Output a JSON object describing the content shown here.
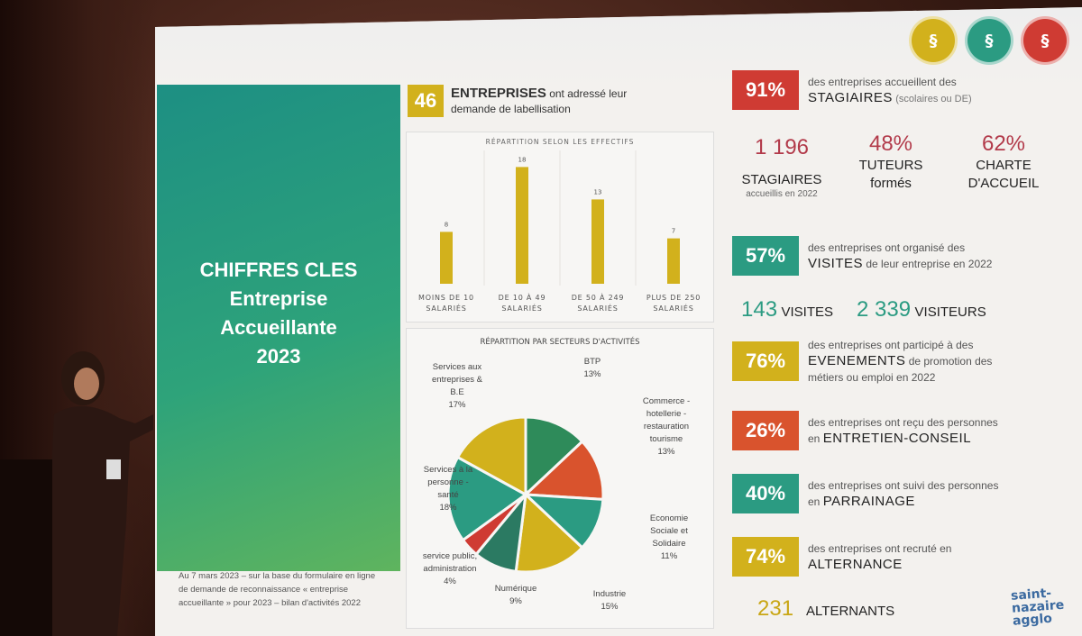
{
  "left_panel": {
    "title_line1": "CHIFFRES CLES",
    "title_line2": "Entreprise",
    "title_line3": "Accueillante",
    "title_line4": "2023"
  },
  "footnote": {
    "line1": "Au 7 mars 2023 – sur la base du formulaire en ligne",
    "line2": "de demande de reconnaissance « entreprise",
    "line3": "accueillante » pour 2023 – bilan d'activités 2022"
  },
  "header": {
    "count": "46",
    "line1_bold": "ENTREPRISES",
    "line1_rest": " ont adressé leur",
    "line2": "demande de labellisation"
  },
  "chart_data": [
    {
      "type": "bar",
      "title": "RÉPARTITION SELON LES EFFECTIFS",
      "categories": [
        "MOINS DE 10 SALARIÉS",
        "DE 10 À 49 SALARIÉS",
        "DE 50 À 249 SALARIÉS",
        "PLUS DE 250 SALARIÉS"
      ],
      "category_lines": [
        [
          "MOINS DE 10",
          "SALARIÉS"
        ],
        [
          "DE 10 À 49",
          "SALARIÉS"
        ],
        [
          "DE 50 À 249",
          "SALARIÉS"
        ],
        [
          "PLUS DE 250",
          "SALARIÉS"
        ]
      ],
      "values": [
        8,
        18,
        13,
        7
      ],
      "ylim": [
        0,
        20
      ],
      "color": "#d2b11c"
    },
    {
      "type": "pie",
      "title": "RÉPARTITION PAR SECTEURS D'ACTIVITÉS",
      "slices": [
        {
          "label": "BTP",
          "value": 13,
          "pct": "13%",
          "color": "#2e8b5a"
        },
        {
          "label": "Commerce - hotellerie - restauration tourisme",
          "value": 13,
          "pct": "13%",
          "color": "#d9532d"
        },
        {
          "label": "Economie Sociale et Solidaire",
          "value": 11,
          "pct": "11%",
          "color": "#2b9b82"
        },
        {
          "label": "Industrie",
          "value": 15,
          "pct": "15%",
          "color": "#d2b11c"
        },
        {
          "label": "Numérique",
          "value": 9,
          "pct": "9%",
          "color": "#2b7a62"
        },
        {
          "label": "service public, administration",
          "value": 4,
          "pct": "4%",
          "color": "#cf3b33"
        },
        {
          "label": "Services à la personne - santé",
          "value": 18,
          "pct": "18%",
          "color": "#2b9b82"
        },
        {
          "label": "Services aux entreprises & B.E",
          "value": 17,
          "pct": "17%",
          "color": "#d2b11c"
        }
      ]
    }
  ],
  "pie_labels": {
    "btp_1": "BTP",
    "btp_2": "13%",
    "com_1": "Commerce -",
    "com_2": "hotellerie -",
    "com_3": "restauration",
    "com_4": "tourisme",
    "com_5": "13%",
    "ess_1": "Economie",
    "ess_2": "Sociale et",
    "ess_3": "Solidaire",
    "ess_4": "11%",
    "ind_1": "Industrie",
    "ind_2": "15%",
    "num_1": "Numérique",
    "num_2": "9%",
    "sp_1": "service public,",
    "sp_2": "administration",
    "sp_3": "4%",
    "sap_1": "Services à la",
    "sap_2": "personne -",
    "sap_3": "santé",
    "sap_4": "18%",
    "sae_1": "Services aux",
    "sae_2": "entreprises &",
    "sae_3": "B.E",
    "sae_4": "17%"
  },
  "stats": {
    "stagiaires": {
      "pct": "91%",
      "line1": "des entreprises accueillent des",
      "bold": "STAGIAIRES",
      "small": "(scolaires ou DE)"
    },
    "big": [
      {
        "value": "1 196",
        "label": "STAGIAIRES",
        "sub": "accueillis en 2022"
      },
      {
        "value": "48%",
        "label1": "TUTEURS",
        "label2": "formés"
      },
      {
        "value": "62%",
        "label1": "CHARTE",
        "label2": "D'ACCUEIL"
      }
    ],
    "visites": {
      "pct": "57%",
      "line1": "des entreprises ont organisé des",
      "bold": "VISITES",
      "rest": " de leur entreprise en 2022"
    },
    "visits_counts": {
      "v1": "143",
      "l1": "VISITES",
      "v2": "2 339",
      "l2": "VISITEURS"
    },
    "evenements": {
      "pct": "76%",
      "line1": "des entreprises ont participé à des",
      "bold": "EVENEMENTS",
      "rest": " de promotion des",
      "line3": "métiers ou emploi en 2022"
    },
    "entretien": {
      "pct": "26%",
      "line1": "des entreprises ont reçu des personnes",
      "pre": "en ",
      "bold": "ENTRETIEN-CONSEIL"
    },
    "parrainage": {
      "pct": "40%",
      "line1": "des entreprises ont suivi des personnes",
      "pre": "en ",
      "bold": "PARRAINAGE"
    },
    "alternance": {
      "pct": "74%",
      "line1": "des entreprises ont recruté en",
      "bold": "ALTERNANCE"
    },
    "alternants": {
      "value": "231",
      "label": "ALTERNANTS"
    }
  },
  "logo": {
    "line1": "saint-",
    "line2": "nazaire",
    "line3": "agglo"
  },
  "colors": {
    "red": "#cf3b33",
    "teal": "#2b9b82",
    "yellow": "#d2b11c",
    "orange": "#d9532d",
    "panel": "#1d8f83"
  }
}
